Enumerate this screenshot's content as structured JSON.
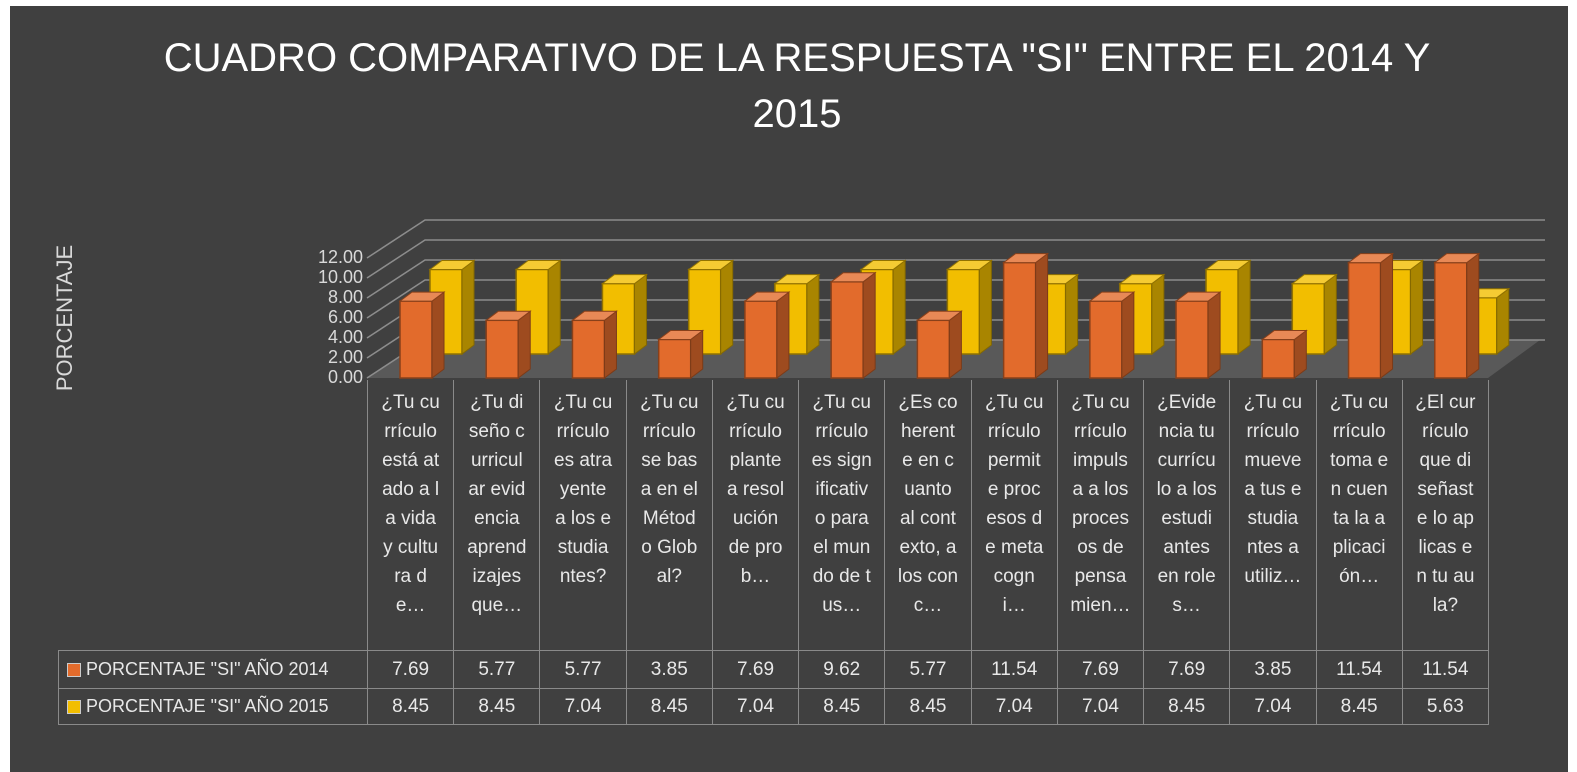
{
  "chart_data": {
    "type": "bar3d",
    "title": "CUADRO COMPARATIVO DE LA RESPUESTA \"SI\" ENTRE EL 2014 Y 2015",
    "y_label": "PORCENTAJE",
    "categories": [
      "¿Tu currículo está atado a la vida y cultura de…",
      "¿Tu diseño curricular evidencia aprendizajes que…",
      "¿Tu currículo es atrayente a los estudiantes?",
      "¿Tu currículo se basa en el Método Global?",
      "¿Tu currículo plantea resolución de prob…",
      "¿Tu currículo es significativo para el mundo de tus…",
      "¿Es coherente en cuanto al contexto, a los conc…",
      "¿Tu currículo permite procesos de metacogni…",
      "¿Tu currículo impulsa a los procesos de pensamien…",
      "¿Evidencia tu currículo a los estudiantes en roles…",
      "¿Tu currículo mueve a tus estudiantes a utiliz…",
      "¿Tu currículo toma en cuenta la aplicación…",
      "¿El currículo que diseñaste lo aplicas en tu aula?"
    ],
    "series": [
      {
        "name": "PORCENTAJE \"SI\" AÑO 2014",
        "color": "#e26b2c",
        "values": [
          7.69,
          5.77,
          5.77,
          3.85,
          7.69,
          9.62,
          5.77,
          11.54,
          7.69,
          7.69,
          3.85,
          11.54,
          11.54
        ]
      },
      {
        "name": "PORCENTAJE \"SI\" AÑO 2015",
        "color": "#f2be00",
        "values": [
          8.45,
          8.45,
          7.04,
          8.45,
          7.04,
          8.45,
          8.45,
          7.04,
          7.04,
          8.45,
          7.04,
          8.45,
          5.63
        ]
      }
    ],
    "ylim": [
      0,
      12
    ],
    "yticks": [
      {
        "value": 0,
        "label": "0.00"
      },
      {
        "value": 2,
        "label": "2.00"
      },
      {
        "value": 4,
        "label": "4.00"
      },
      {
        "value": 6,
        "label": "6.00"
      },
      {
        "value": 8,
        "label": "8.00"
      },
      {
        "value": 10,
        "label": "10.00"
      },
      {
        "value": 12,
        "label": "12.00"
      }
    ],
    "grid": true
  }
}
